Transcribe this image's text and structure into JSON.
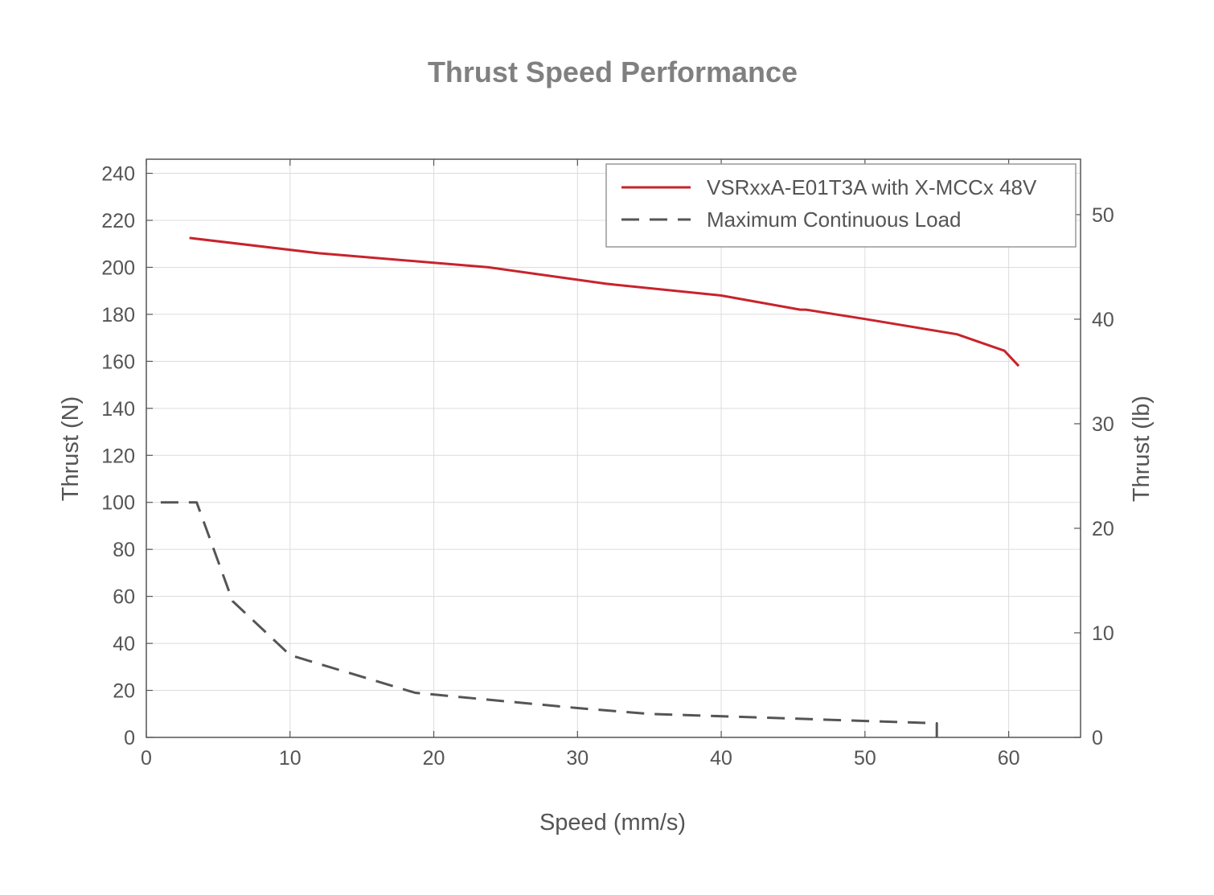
{
  "chart_data": {
    "type": "line",
    "title": "Thrust Speed Performance",
    "xlabel": "Speed (mm/s)",
    "ylabel": "Thrust (N)",
    "ylabel_right": "Thrust (lb)",
    "xlim": [
      0,
      65
    ],
    "ylim": [
      0,
      246
    ],
    "ylim_right": [
      0,
      55.3
    ],
    "x_ticks": [
      0,
      10,
      20,
      30,
      40,
      50,
      60
    ],
    "y_ticks": [
      0,
      20,
      40,
      60,
      80,
      100,
      120,
      140,
      160,
      180,
      200,
      220,
      240
    ],
    "y_ticks_right": [
      0,
      10,
      20,
      30,
      40,
      50
    ],
    "grid": true,
    "legend_position": "top-right",
    "series": [
      {
        "name": "VSRxxA-E01T3A with X-MCCx 48V",
        "color": "#c8232c",
        "style": "solid",
        "x": [
          3.0,
          12.0,
          23.8,
          32.0,
          40.0,
          45.5,
          45.9,
          50.0,
          56.4,
          59.7,
          60.7
        ],
        "y": [
          212.5,
          206.0,
          200.0,
          193.0,
          188.0,
          182.0,
          182.0,
          178.0,
          171.5,
          164.5,
          158.0
        ]
      },
      {
        "name": "Maximum Continuous Load",
        "color": "#555555",
        "style": "dashed",
        "x": [
          1.0,
          3.5,
          6.0,
          10.0,
          18.7,
          23.0,
          30.0,
          35.0,
          45.0,
          55.0,
          55.0
        ],
        "y": [
          100,
          100,
          58,
          35,
          19,
          16.5,
          12.5,
          10,
          8,
          6,
          0
        ]
      }
    ]
  }
}
